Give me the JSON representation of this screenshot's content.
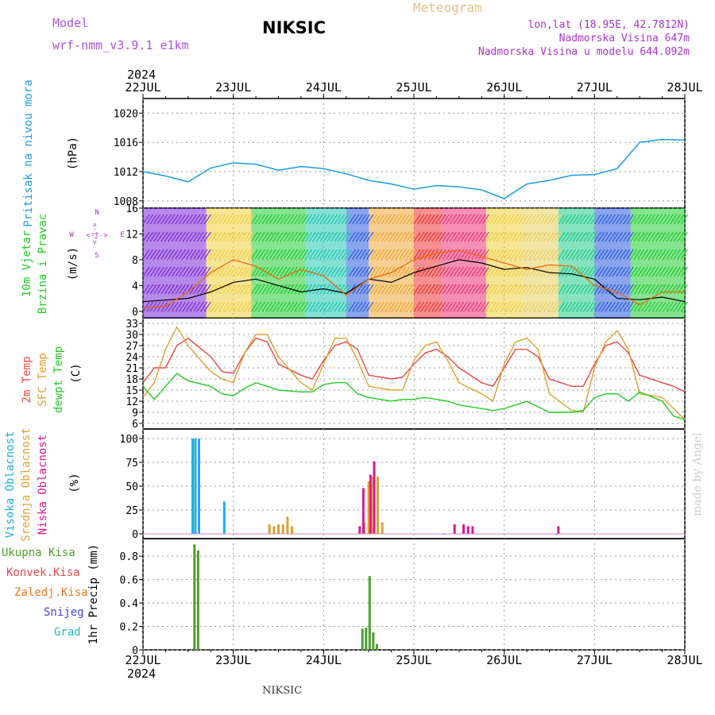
{
  "header": {
    "model_label": "Model",
    "model_name": "wrf-nmm_v3.9.1 e1km",
    "station": "NIKSIC",
    "meteogram": "Meteogram",
    "lonlat": "lon,lat (18.95E, 42.7812N)",
    "altitude": "Nadmorska Visina 647m",
    "model_altitude": "Nadmorska Visina u modelu 644.092m"
  },
  "footer": {
    "station": "NIKSIC",
    "credit": "made by Angel"
  },
  "colors": {
    "pressure": "#1a9ee8",
    "t2m": "#e84848",
    "sfc": "#e0a030",
    "dewpt": "#22cc22",
    "high_cloud": "#22aaee",
    "mid_cloud": "#e0a030",
    "low_cloud": "#e01890",
    "precip": "#4aa02c",
    "conv": "#e84848",
    "frozen": "#f07a22",
    "snow": "#4444dd",
    "hail": "#22bbbb",
    "wind_speed": "#000000",
    "wind_gust": "#ee6600",
    "grid": "#999999"
  },
  "time_axis": {
    "year": "2024",
    "ticks": [
      "22JUL",
      "23JUL",
      "24JUL",
      "25JUL",
      "26JUL",
      "27JUL",
      "28JUL"
    ]
  },
  "compass": {
    "n": "N",
    "w": "W",
    "e": "E",
    "s": "S",
    "axis": "<-|->"
  },
  "chart_data": [
    {
      "type": "line",
      "ylabel": "Pritisak na nivou mora",
      "unit": "(hPa)",
      "ylim": [
        1007,
        1022
      ],
      "yticks": [
        "1008",
        "1012",
        "1016",
        "1020"
      ],
      "series": [
        {
          "x": [
            0,
            0.25,
            0.5,
            0.75,
            1,
            1.25,
            1.5,
            1.75,
            2,
            2.25,
            2.5,
            2.75,
            3,
            3.25,
            3.5,
            3.75,
            4,
            4.25,
            4.5,
            4.75,
            5,
            5.25,
            5.5,
            5.75,
            6
          ],
          "values": [
            1012,
            1011.4,
            1010.6,
            1012.5,
            1013.2,
            1013,
            1012.2,
            1012.7,
            1012.4,
            1011.7,
            1010.8,
            1010.3,
            1009.6,
            1010.1,
            1009.9,
            1009.5,
            1008.3,
            1010.3,
            1010.8,
            1011.5,
            1011.6,
            1012.4,
            1016,
            1016.4,
            1016.3
          ]
        }
      ]
    },
    {
      "type": "line",
      "ylabel": "10m Vjetar Brzina i Pravac",
      "unit": "(m/s)",
      "ylim": [
        -1,
        16
      ],
      "yticks": [
        "0",
        "4",
        "8",
        "12",
        "16"
      ],
      "series": [
        {
          "x": [
            0,
            0.5,
            0.75,
            1,
            1.25,
            1.5,
            1.75,
            2,
            2.25,
            2.5,
            2.75,
            3,
            3.25,
            3.5,
            3.75,
            4,
            4.25,
            4.5,
            4.75,
            5,
            5.25,
            5.5,
            5.75,
            6
          ],
          "values": [
            1.5,
            2,
            3,
            4.5,
            5,
            4,
            3,
            3.5,
            2.8,
            5,
            4.5,
            6,
            7,
            8,
            7.5,
            6.5,
            6.8,
            6,
            5.8,
            5,
            2,
            1.8,
            2.2,
            1.5
          ]
        },
        {
          "x": [
            0,
            0.25,
            0.5,
            0.75,
            1,
            1.25,
            1.5,
            1.75,
            2,
            2.25,
            2.5,
            2.75,
            3,
            3.25,
            3.5,
            3.75,
            4,
            4.25,
            4.5,
            4.75,
            5,
            5.25,
            5.5,
            5.75,
            6
          ],
          "values": [
            0.5,
            0.8,
            3,
            6,
            8,
            7,
            5,
            6.5,
            5.5,
            2.5,
            5,
            6,
            8,
            9,
            9.5,
            8.5,
            7.5,
            6.5,
            7.2,
            7,
            4,
            3,
            1,
            3,
            3
          ]
        }
      ]
    },
    {
      "type": "line",
      "ylabel": "2m Temp / SFC Temp / dewpt Temp",
      "unit": "(C)",
      "ylim": [
        4.5,
        34.5
      ],
      "yticks": [
        "6",
        "9",
        "12",
        "15",
        "18",
        "21",
        "24",
        "27",
        "30",
        "33"
      ],
      "series": [
        {
          "name": "2m Temp",
          "x": [
            0,
            0.125,
            0.25,
            0.375,
            0.5,
            0.75,
            0.875,
            1,
            1.125,
            1.25,
            1.375,
            1.5,
            1.75,
            1.875,
            2,
            2.125,
            2.25,
            2.375,
            2.5,
            2.75,
            2.875,
            3,
            3.125,
            3.25,
            3.375,
            3.5,
            3.75,
            3.875,
            4,
            4.125,
            4.25,
            4.375,
            4.5,
            4.75,
            4.875,
            5,
            5.125,
            5.25,
            5.375,
            5.5,
            5.75,
            5.875,
            6
          ],
          "values": [
            17,
            21,
            21,
            27,
            29,
            24,
            20,
            19.5,
            25,
            29,
            28,
            22,
            19,
            18,
            23,
            27,
            28,
            26,
            19,
            18,
            18.5,
            22,
            25,
            26,
            24,
            21,
            17,
            16,
            21,
            26,
            26,
            24,
            18,
            16,
            16,
            22,
            27,
            28,
            25,
            19,
            17,
            16,
            14.5
          ]
        },
        {
          "name": "SFC Temp",
          "x": [
            0,
            0.125,
            0.25,
            0.375,
            0.5,
            0.75,
            0.875,
            1,
            1.125,
            1.25,
            1.375,
            1.5,
            1.75,
            1.875,
            2,
            2.125,
            2.25,
            2.375,
            2.5,
            2.75,
            2.875,
            3,
            3.125,
            3.25,
            3.375,
            3.5,
            3.75,
            3.875,
            4,
            4.125,
            4.25,
            4.375,
            4.5,
            4.75,
            4.875,
            5,
            5.125,
            5.25,
            5.375,
            5.5,
            5.75,
            5.875,
            6
          ],
          "values": [
            13,
            17,
            26,
            32,
            27,
            20,
            18,
            17,
            25,
            30,
            30,
            24,
            17,
            15,
            22,
            29,
            29,
            23,
            16,
            15,
            15,
            23,
            27,
            28,
            23,
            17,
            14,
            12,
            22,
            28,
            29,
            26,
            14,
            9.5,
            9,
            21,
            28,
            31,
            26,
            14,
            13,
            10,
            7
          ]
        },
        {
          "name": "dewpt Temp",
          "x": [
            0,
            0.125,
            0.25,
            0.375,
            0.5,
            0.75,
            0.875,
            1,
            1.125,
            1.25,
            1.375,
            1.5,
            1.75,
            1.875,
            2,
            2.125,
            2.25,
            2.375,
            2.5,
            2.75,
            2.875,
            3,
            3.125,
            3.25,
            3.375,
            3.5,
            3.75,
            3.875,
            4,
            4.125,
            4.25,
            4.375,
            4.5,
            4.75,
            4.875,
            5,
            5.125,
            5.25,
            5.375,
            5.5,
            5.75,
            5.875,
            6
          ],
          "values": [
            16,
            12.5,
            16,
            19.5,
            17.5,
            16,
            14,
            13.5,
            15.5,
            17,
            16,
            15,
            14.5,
            14.5,
            16.5,
            17,
            17,
            14,
            13,
            12,
            12.5,
            12.5,
            13,
            12.5,
            12,
            11,
            10,
            9.5,
            10,
            11,
            12,
            10.5,
            9,
            9,
            9.5,
            13,
            14,
            14,
            12,
            14.5,
            12,
            8,
            7
          ]
        }
      ]
    },
    {
      "type": "bar",
      "ylabel": "Visoka Oblacnost / Srednja Oblacnost / Niska Oblacnost",
      "unit": "(%)",
      "ylim": [
        -5,
        110
      ],
      "yticks": [
        "0",
        "25",
        "50",
        "75",
        "100"
      ],
      "series": [
        {
          "name": "Visoka Oblacnost",
          "x": [
            0.55,
            0.58,
            0.62,
            0.9,
            3.33,
            4.58
          ],
          "values": [
            100,
            100,
            100,
            34,
            0,
            0
          ]
        },
        {
          "name": "Srednja Oblacnost",
          "x": [
            1.4,
            1.45,
            1.5,
            1.55,
            1.6,
            1.65,
            2.45,
            2.5,
            2.55,
            2.6,
            2.65
          ],
          "values": [
            10,
            8,
            10,
            10,
            18,
            8,
            12,
            55,
            60,
            60,
            12
          ]
        },
        {
          "name": "Niska Oblacnost",
          "x": [
            2.4,
            2.44,
            2.52,
            2.56,
            3.45,
            3.55,
            3.6,
            3.65,
            4.6
          ],
          "values": [
            8,
            48,
            62,
            76,
            10,
            10,
            8,
            8,
            8
          ]
        }
      ]
    },
    {
      "type": "bar",
      "ylabel": "1hr Precip (mm)",
      "ylim": [
        0,
        0.95
      ],
      "yticks": [
        "0",
        "0.2",
        "0.4",
        "0.6",
        "0.8"
      ],
      "legend": [
        "Ukupna Kisa",
        "Konvek.Kisa",
        "Zaledj.Kisa",
        "Snijeg",
        "Grad"
      ],
      "series": [
        {
          "name": "Ukupna Kisa",
          "x": [
            0.57,
            0.61,
            2.43,
            2.47,
            2.51,
            2.55,
            2.59
          ],
          "values": [
            0.9,
            0.85,
            0.18,
            0.19,
            0.63,
            0.15,
            0.05
          ]
        }
      ]
    }
  ]
}
